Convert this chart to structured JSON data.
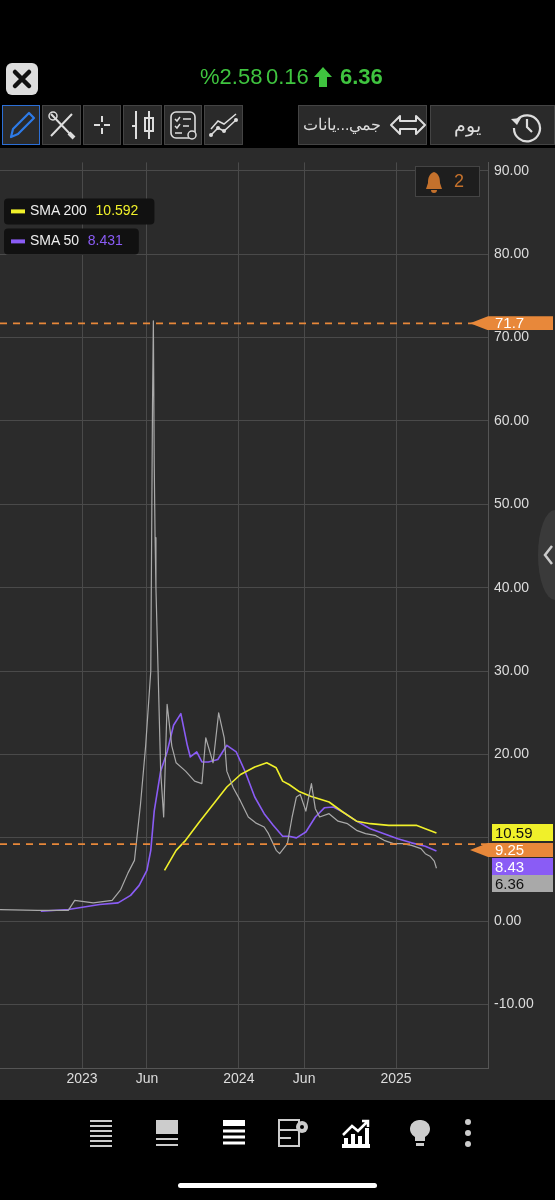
{
  "chart_data": {
    "type": "line",
    "marker": "none",
    "line_style": "solid",
    "grid": true,
    "legend": "top left",
    "xlim": [
      "2022-06-24",
      "2025-08-03"
    ],
    "xticks": [
      {
        "value": "2023-01-01",
        "label": "2023"
      },
      {
        "value": "2023-06-01",
        "label": "Jun"
      },
      {
        "value": "2024-01-01",
        "label": "2024"
      },
      {
        "value": "2024-06-01",
        "label": "Jun"
      },
      {
        "value": "2025-01-01",
        "label": "2025"
      }
    ],
    "ylim": [
      -17.6,
      91.0
    ],
    "yticks": [
      {
        "value": -10,
        "label": "-10.00"
      },
      {
        "value": 0,
        "label": "0.00"
      },
      {
        "value": 10,
        "label": null
      },
      {
        "value": 20,
        "label": "20.00"
      },
      {
        "value": 30,
        "label": "30.00"
      },
      {
        "value": 40,
        "label": "40.00"
      },
      {
        "value": 50,
        "label": "50.00"
      },
      {
        "value": 60,
        "label": "60.00"
      },
      {
        "value": 70,
        "label": "70.00"
      },
      {
        "value": 80,
        "label": "80.00"
      },
      {
        "value": 90,
        "label": "90.00"
      }
    ],
    "ref_lines": [
      {
        "axis": "y",
        "value": 71.7,
        "label": "71.7",
        "color": "#e8883a",
        "line_style": "dashed"
      },
      {
        "axis": "y",
        "value": 9.25,
        "label": "9.25",
        "color": "#e8883a",
        "line_style": "dashed"
      }
    ],
    "annotations": [
      "6.36",
      "0.16",
      "%2.58",
      "يوم",
      "جمي...يانات",
      "2",
      "10.592",
      "8.431",
      "10.59",
      "8.43",
      "6.36"
    ],
    "series": [
      {
        "color": "#a9a9a9",
        "x": [
          "2022-06-24",
          "2022-09-19",
          "2022-11-30",
          "2022-12-15",
          "2023-01-27",
          "2023-03-12",
          "2023-04-01",
          "2023-04-18",
          "2023-05-03",
          "2023-05-17",
          "2023-05-29",
          "2023-06-10",
          "2023-06-14",
          "2023-06-16",
          "2023-06-18",
          "2023-06-20",
          "2023-06-22",
          "2023-06-27",
          "2023-07-03",
          "2023-07-10",
          "2023-07-18",
          "2023-07-29",
          "2023-08-08",
          "2023-08-30",
          "2023-09-20",
          "2023-10-07",
          "2023-10-16",
          "2023-11-02",
          "2023-11-15",
          "2023-11-28",
          "2023-12-04",
          "2023-12-19",
          "2024-01-05",
          "2024-01-23",
          "2024-02-09",
          "2024-02-29",
          "2024-03-10",
          "2024-03-28",
          "2024-04-05",
          "2024-04-23",
          "2024-05-04",
          "2024-05-14",
          "2024-05-23",
          "2024-06-05",
          "2024-06-18",
          "2024-06-27",
          "2024-07-07",
          "2024-07-29",
          "2024-08-19",
          "2024-09-10",
          "2024-10-01",
          "2024-10-22",
          "2024-11-13",
          "2024-12-04",
          "2024-12-26",
          "2025-01-16",
          "2025-02-06",
          "2025-02-28",
          "2025-03-10",
          "2025-03-21",
          "2025-03-31",
          "2025-04-05"
        ],
        "values": [
          1.4,
          1.3,
          1.3,
          2.5,
          2.2,
          2.5,
          3.8,
          5.8,
          7.3,
          14,
          21,
          30,
          62,
          72,
          55,
          46,
          40,
          30,
          18,
          12.5,
          26,
          21,
          19,
          18,
          16.8,
          16.5,
          22,
          19,
          25,
          22,
          18,
          16,
          14.4,
          12.5,
          11.8,
          11.3,
          10.5,
          8.5,
          8.1,
          9.3,
          12.5,
          14.9,
          15.2,
          13.2,
          16.5,
          13.5,
          12.5,
          12.9,
          12.0,
          11.7,
          10.9,
          10.5,
          10.3,
          9.7,
          9.3,
          9.3,
          9.1,
          8.7,
          8.1,
          7.8,
          7.2,
          6.36
        ]
      },
      {
        "name": "SMA 200",
        "color": "#f0f02a",
        "x": [
          "2023-07-12",
          "2023-08-08",
          "2023-08-30",
          "2023-10-01",
          "2023-11-02",
          "2023-12-04",
          "2024-01-05",
          "2024-02-07",
          "2024-03-06",
          "2024-03-28",
          "2024-04-12",
          "2024-04-27",
          "2024-05-19",
          "2024-06-16",
          "2024-07-29",
          "2024-08-30",
          "2024-10-01",
          "2024-11-02",
          "2024-12-15",
          "2025-01-27",
          "2025-02-17",
          "2025-03-10",
          "2025-04-05"
        ],
        "values": [
          6.1,
          8.5,
          9.7,
          11.9,
          14.0,
          16.1,
          17.6,
          18.5,
          19.0,
          18.4,
          16.8,
          16.4,
          15.6,
          15.0,
          14.3,
          13.1,
          12.0,
          11.7,
          11.5,
          11.5,
          11.5,
          11.1,
          10.592
        ]
      },
      {
        "name": "SMA 50",
        "color": "#8a5cf5",
        "x": [
          "2022-09-27",
          "2022-11-30",
          "2023-02-11",
          "2023-03-26",
          "2023-04-24",
          "2023-05-14",
          "2023-06-01",
          "2023-06-10",
          "2023-06-18",
          "2023-07-03",
          "2023-07-18",
          "2023-08-02",
          "2023-08-19",
          "2023-09-03",
          "2023-09-10",
          "2023-09-25",
          "2023-10-07",
          "2023-10-22",
          "2023-11-13",
          "2023-12-04",
          "2023-12-26",
          "2024-01-16",
          "2024-02-07",
          "2024-02-29",
          "2024-03-21",
          "2024-04-12",
          "2024-04-27",
          "2024-05-14",
          "2024-06-05",
          "2024-06-27",
          "2024-07-18",
          "2024-08-08",
          "2024-08-30",
          "2024-10-01",
          "2024-11-02",
          "2024-12-04",
          "2025-01-05",
          "2025-02-06",
          "2025-03-10",
          "2025-04-05"
        ],
        "values": [
          1.2,
          1.4,
          2.0,
          2.2,
          3.1,
          4.3,
          6.1,
          8.5,
          13.2,
          18,
          20.3,
          23.5,
          24.9,
          21.1,
          19.7,
          20.3,
          19.1,
          19.1,
          19.4,
          21.1,
          20.3,
          17.9,
          14.9,
          12.9,
          11.5,
          10.2,
          10.2,
          10.0,
          10.7,
          12.5,
          13.6,
          13.7,
          13.1,
          12.0,
          11.1,
          10.5,
          9.9,
          9.4,
          9.0,
          8.431
        ]
      }
    ]
  }
}
